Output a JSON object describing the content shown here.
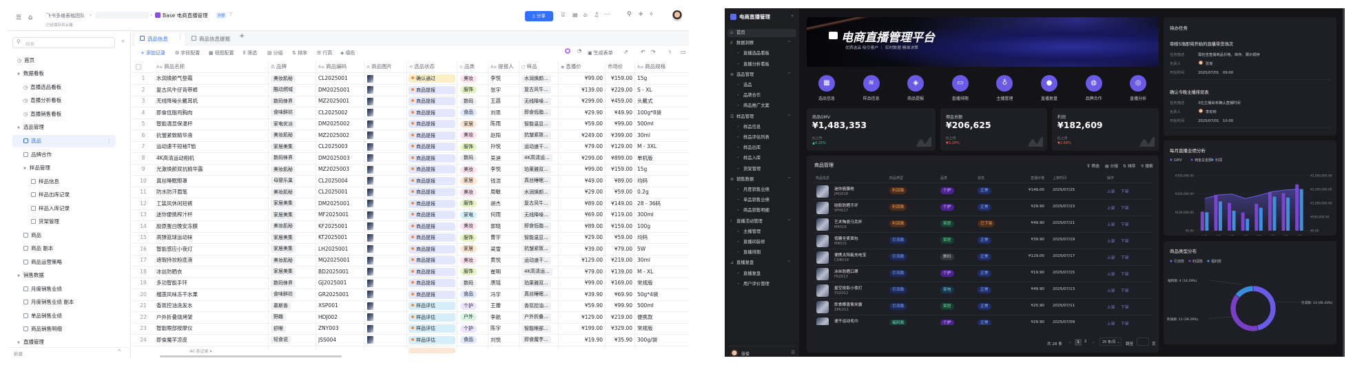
{
  "left_app": {
    "header": {
      "team": "飞书多维表格团队",
      "base_name": "Base 电商直播管理",
      "badge": "外部",
      "saved": "已经保存到云端",
      "share": "分享"
    },
    "sidebar": {
      "search_placeholder": "搜索",
      "new_label": "新建",
      "items": [
        {
          "label": "首页",
          "level": 0,
          "kind": "home"
        },
        {
          "label": "数据看板",
          "level": 0,
          "kind": "group"
        },
        {
          "label": "直播选品看板",
          "level": 1,
          "kind": "dash"
        },
        {
          "label": "直播分析看板",
          "level": 1,
          "kind": "dash"
        },
        {
          "label": "直播销售看板",
          "level": 1,
          "kind": "dash"
        },
        {
          "label": "选品管理",
          "level": 0,
          "kind": "group"
        },
        {
          "label": "选品",
          "level": 1,
          "kind": "table",
          "active": true
        },
        {
          "label": "品牌合作",
          "level": 1,
          "kind": "table"
        },
        {
          "label": "样品管理",
          "level": 1,
          "kind": "group"
        },
        {
          "label": "样品信息",
          "level": 2,
          "kind": "table"
        },
        {
          "label": "样品出库记录",
          "level": 2,
          "kind": "table"
        },
        {
          "label": "样品入库记录",
          "level": 2,
          "kind": "table"
        },
        {
          "label": "货架管理",
          "level": 2,
          "kind": "table"
        },
        {
          "label": "商品",
          "level": 1,
          "kind": "table"
        },
        {
          "label": "商品 副本",
          "level": 1,
          "kind": "table"
        },
        {
          "label": "商品运营策略",
          "level": 1,
          "kind": "table"
        },
        {
          "label": "销售数据",
          "level": 0,
          "kind": "group"
        },
        {
          "label": "月度销售业绩",
          "level": 1,
          "kind": "table"
        },
        {
          "label": "月度销售业绩 副本",
          "level": 1,
          "kind": "table"
        },
        {
          "label": "单品销售业绩",
          "level": 1,
          "kind": "table"
        },
        {
          "label": "商品销售明细",
          "level": 1,
          "kind": "table"
        },
        {
          "label": "直播管理",
          "level": 0,
          "kind": "group"
        }
      ]
    },
    "tabs": [
      {
        "label": "选品信息",
        "active": true
      },
      {
        "label": "商品信息提报"
      }
    ],
    "toolbar": {
      "add": "添加记录",
      "fields": "字段配置",
      "view": "视图配置",
      "filter": "筛选",
      "group": "分组",
      "sort": "排序",
      "row_height": "行高",
      "fill": "填色",
      "form": "生成表单"
    },
    "columns": [
      "商品名称",
      "品牌",
      "商品编码",
      "商品图片",
      "选品状态",
      "品类",
      "提报人",
      "样品",
      "直播价",
      "市场价",
      "商品规格"
    ],
    "rows": [
      [
        "水润焕颜气垫霜",
        "美妆肌秘",
        "CL2025001",
        "确认通过",
        "美妆",
        "李悦",
        "水润焕颜...",
        "¥99.00",
        "¥159.00",
        "15g"
      ],
      [
        "复古风牛仔背带裤",
        "酷动燃域",
        "DM2025001",
        "商品提报",
        "服饰",
        "张宇",
        "复古风牛...",
        "¥139.00",
        "¥229.00",
        "S - XL"
      ],
      [
        "无线降噪头戴耳机",
        "数码锋界",
        "MZ2025001",
        "商品提报",
        "数码",
        "王晨",
        "无线降噪...",
        "¥299.00",
        "¥459.00",
        "头戴式"
      ],
      [
        "即食低脂鸡胸肉",
        "食味鲜坊",
        "CL2025002",
        "商品提报",
        "食品",
        "刘思",
        "即食低脂...",
        "¥29.90",
        "¥49.90",
        "100g*8袋"
      ],
      [
        "智能温显保温杯",
        "家电优派",
        "DM2025002",
        "商品提报",
        "家居",
        "陈雨",
        "智能温显...",
        "¥59.00",
        "¥99.00",
        "500ml"
      ],
      [
        "抗皱紧致精华液",
        "美妆肌秘",
        "MZ2025002",
        "商品提报",
        "美妆",
        "赵阳",
        "抗皱紧致...",
        "¥249.00",
        "¥399.00",
        "30ml"
      ],
      [
        "运动速干短袖T恤",
        "家居美集",
        "CL2025003",
        "商品提报",
        "服饰",
        "孙悦",
        "运动速干...",
        "¥79.00",
        "¥129.00",
        "M - 3XL"
      ],
      [
        "4K高清运动相机",
        "数码锋界",
        "DM2025003",
        "商品提报",
        "数码",
        "吴迪",
        "4K高清运...",
        "¥299.00",
        "¥899.00",
        "单机版"
      ],
      [
        "光澈焕颜双抗精华露",
        "美妆肌秘",
        "MZ2025003",
        "商品提报",
        "美妆",
        "李悦",
        "珀莱雅双...",
        "¥99.00",
        "¥159.00",
        "15g"
      ],
      [
        "真丝睡眠眼罩",
        "母婴乐巢",
        "CL2025004",
        "商品提报",
        "家居",
        "钱浩",
        "真丝睡眠...",
        "¥49.00",
        "¥89.00",
        "均码"
      ],
      [
        "防水防汗眉笔",
        "美妆肌秘",
        "CL2025001",
        "商品提报",
        "美妆",
        "周敏",
        "水润焕颜...",
        "¥29.00",
        "¥59.00",
        "0.2g"
      ],
      [
        "工装风休闲短裤",
        "家居美集",
        "DM2025001",
        "商品提报",
        "服饰",
        "胡杰",
        "复古风牛...",
        "¥89.00",
        "¥149.00",
        "28 - 36码"
      ],
      [
        "迷你便携榨汁杯",
        "家居美集",
        "MF2025001",
        "商品提报",
        "家电",
        "何雨",
        "无线降噪...",
        "¥69.00",
        "¥119.00",
        "300ml"
      ],
      [
        "胶原蛋白晚安冻膜",
        "美妆肌秘",
        "KF2025001",
        "商品提报",
        "美妆",
        "郭晓",
        "即食低脂...",
        "¥89.00",
        "¥159.00",
        "100g"
      ],
      [
        "高弹篮球运动袜",
        "家居美集",
        "KT2025001",
        "商品提报",
        "服饰",
        "曹宇",
        "智能温显...",
        "¥29.00",
        "¥59.00",
        "均码"
      ],
      [
        "智能感应小夜灯",
        "家居美集",
        "LH2025001",
        "商品提报",
        "家居",
        "梁雪",
        "抗皱紧致...",
        "¥39.00",
        "¥79.00",
        "5W"
      ],
      [
        "遮瑕持妆粉底液",
        "美妆肌秘",
        "MQ2025001",
        "商品提报",
        "美妆",
        "黄悦",
        "运动速干...",
        "¥129.00",
        "¥219.00",
        "30ml"
      ],
      [
        "冰丝防晒衣",
        "家居美集",
        "BD2025001",
        "商品提报",
        "服饰",
        "崔明",
        "4K高清运...",
        "¥79.00",
        "¥139.00",
        "M - XL"
      ],
      [
        "多功智能手环",
        "数码锋界",
        "GJ2025001",
        "商品提报",
        "数码",
        "唐瑶",
        "珀莱雅双...",
        "¥99.00",
        "¥169.00",
        "常规版"
      ],
      [
        "榴莲风味冻干水果",
        "食味鲜坊",
        "GR2025001",
        "商品提报",
        "食品",
        "冯宇",
        "真丝睡眠...",
        "¥39.90",
        "¥69.90",
        "50g*4袋"
      ],
      [
        "香氛控油洗发水",
        "慕斯香",
        "XSP001",
        "样品评估",
        "个护",
        "王蕾",
        "香氛控油...",
        "¥59.90",
        "¥99.90",
        "500ml"
      ],
      [
        "户外折叠烧烤架",
        "野趣",
        "HDJ002",
        "样品评估",
        "户外",
        "李航",
        "户外折叠...",
        "¥129.00",
        "¥219.00",
        "便携款"
      ],
      [
        "智能眼部按摩仪",
        "舒眼",
        "ZNY003",
        "样品评估",
        "个护",
        "陈宇",
        "智能眼部...",
        "¥199.00",
        "¥329.00",
        "常规版"
      ],
      [
        "即食魔芋凉皮",
        "轻食说",
        "JSS004",
        "样品评估",
        "食品",
        "刘悦",
        "即食魔芋...",
        "¥19.90",
        "¥35.90",
        "300g/袋"
      ]
    ],
    "footer": {
      "count": "40 条记录"
    },
    "status_colors": {
      "确认通过": "#fbefc8",
      "商品提报": "#e3e7fd",
      "样品评估": "#d5eefa"
    },
    "category_colors": {
      "美妆": "#fde1ee",
      "服饰": "#e5f5c2",
      "数码": "#eceef1",
      "食品": "#e0e8fd",
      "家居": "#fde5d2",
      "家电": "#d3f0fb",
      "个护": "#ece4fd",
      "户外": "#d9f6e1"
    }
  },
  "right_app": {
    "sidebar": {
      "title": "电商直播管理",
      "user": "张俊",
      "items": [
        {
          "label": "首页",
          "level": 0,
          "active": true
        },
        {
          "label": "数据洞察",
          "level": 0,
          "group": true
        },
        {
          "label": "直播选品看板",
          "level": 1
        },
        {
          "label": "直播分析看板",
          "level": 1
        },
        {
          "label": "选品管理",
          "level": 0,
          "group": true
        },
        {
          "label": "选品",
          "level": 1
        },
        {
          "label": "品牌合作",
          "level": 1
        },
        {
          "label": "商品推广文案",
          "level": 1
        },
        {
          "label": "样品管理",
          "level": 0,
          "group": true
        },
        {
          "label": "样品信息",
          "level": 1
        },
        {
          "label": "样品评估列表",
          "level": 1
        },
        {
          "label": "样品出库",
          "level": 1
        },
        {
          "label": "样品入库",
          "level": 1
        },
        {
          "label": "货架管理",
          "level": 1
        },
        {
          "label": "销售数据",
          "level": 0,
          "group": true
        },
        {
          "label": "月度销售业绩",
          "level": 1
        },
        {
          "label": "单品销售业绩",
          "level": 1
        },
        {
          "label": "商品销售明细",
          "level": 1
        },
        {
          "label": "直播活动管理",
          "level": 0,
          "group": true
        },
        {
          "label": "主播管理",
          "level": 1
        },
        {
          "label": "直播间装修",
          "level": 1
        },
        {
          "label": "直播排期",
          "level": 1
        },
        {
          "label": "直播复盘",
          "level": 0,
          "group": true
        },
        {
          "label": "直播复盘",
          "level": 1
        },
        {
          "label": "用户评价管理",
          "level": 1
        }
      ]
    },
    "banner": {
      "title": "电商直播管理平台",
      "subtitle": "优质选品 吸引客户 ｜ 实时数据 精准决策"
    },
    "shortcuts": [
      {
        "label": "选品信息",
        "icon": "grid-icon"
      },
      {
        "label": "样品信息",
        "icon": "layers-icon"
      },
      {
        "label": "商品提报",
        "icon": "box-icon"
      },
      {
        "label": "直播排期",
        "icon": "calendar-icon"
      },
      {
        "label": "主播管理",
        "icon": "microphone-icon"
      },
      {
        "label": "直播复盘",
        "icon": "bulb-icon"
      },
      {
        "label": "品牌合作",
        "icon": "globe-icon"
      },
      {
        "label": "直播分析",
        "icon": "gauge-icon"
      }
    ],
    "stats": [
      {
        "label": "商品GMV",
        "value": "¥1,483,353",
        "compare": "比上月",
        "change": "▲4.15%",
        "dir": "up"
      },
      {
        "label": "佣金总额",
        "value": "¥206,625",
        "compare": "比上月",
        "change": "▼3.28%",
        "dir": "down"
      },
      {
        "label": "利润",
        "value": "¥182,609",
        "compare": "比上月",
        "change": "▼2.68%",
        "dir": "down"
      }
    ],
    "product_table": {
      "title": "商品管理",
      "tools": [
        "筛选",
        "分组",
        "排序",
        "搜索"
      ],
      "columns": [
        "商品信息",
        "商品类型",
        "品类",
        "状态",
        "直播价格",
        "上架时间",
        "操作"
      ],
      "actions": [
        "上架",
        "下架"
      ],
      "rows": [
        {
          "name": "迷你筋膜枪",
          "code": "JMQ018",
          "type": "利润款",
          "cat": "个护",
          "status": "正常",
          "price": "¥149.00",
          "date": "2025/07/25"
        },
        {
          "name": "硅胶防晒手环",
          "code": "SFH017",
          "type": "利润款",
          "cat": "个护",
          "status": "正常",
          "price": "¥29.90",
          "date": "2025/07/23"
        },
        {
          "name": "艺术陶瓷马克杯",
          "code": "MK016",
          "type": "利润款",
          "cat": "家居",
          "status": "已下架",
          "price": "¥49.90",
          "date": "2025/07/21"
        },
        {
          "name": "低糖全麦面包",
          "code": "MB015",
          "type": "引流款",
          "cat": "家居",
          "status": "正常",
          "price": "¥39.90",
          "date": "2025/07/19"
        },
        {
          "name": "便携太阳能充电宝",
          "code": "CDB014",
          "type": "引流款",
          "cat": "数码",
          "status": "正常",
          "price": "¥129.00",
          "date": "2025/07/17"
        },
        {
          "name": "冰丝防晒口罩",
          "code": "FKZ013",
          "type": "引流款",
          "cat": "个护",
          "status": "正常",
          "price": "¥19.90",
          "date": "2025/07/15"
        },
        {
          "name": "星空投影小夜灯",
          "code": "YSD012",
          "type": "引流款",
          "cat": "家电",
          "status": "正常",
          "price": "¥49.90",
          "date": "2025/07/13"
        },
        {
          "name": "即食椰香紫米露",
          "code": "ZML011",
          "type": "引流款",
          "cat": "家居",
          "status": "正常",
          "price": "¥25.90",
          "date": "2025/07/11"
        },
        {
          "name": "速干运动毛巾",
          "code": "",
          "type": "福利款",
          "cat": "个护",
          "status": "正常",
          "price": "¥29.90",
          "date": "2025/07/09"
        }
      ],
      "pagination": {
        "total": "共 28 条",
        "pages": [
          "1",
          "2"
        ],
        "current": "1",
        "page_size": "20 条/页",
        "jump": "跳至",
        "page_unit": "页"
      }
    },
    "todo": {
      "title": "待办任务",
      "fields": [
        "任务描述",
        "负责人",
        "开始时间"
      ],
      "tasks": [
        {
          "title": "审核5场即将开始的直播带货场次",
          "desc": "需检查直播商品价格、库存、展示顺序",
          "owner": "张俊",
          "start": "2025/07/01　09:00"
        },
        {
          "title": "确认今晚主播排班表",
          "desc": "3位主播尚未确认直播时间",
          "owner": "李宏彬",
          "start": "2025/07/01　10:00"
        }
      ]
    }
  },
  "chart_data": [
    {
      "type": "bar",
      "title": "每月直播业绩分析",
      "categories": [
        "1月",
        "2月",
        "3月",
        "4月",
        "5月",
        "6月",
        "7月",
        "8月"
      ],
      "series": [
        {
          "name": "GMV",
          "type": "area-line",
          "axis": "right",
          "color": "#6b5cf0",
          "values": [
            1170000,
            1300000,
            1330000,
            1170000,
            1280000,
            1420000,
            1480000,
            1510000
          ]
        },
        {
          "name": "佣金总金额",
          "type": "bar",
          "axis": "left",
          "color": "#7b45d0",
          "values": [
            104000,
            195000,
            152000,
            99000,
            147000,
            212000,
            205000,
            252000
          ]
        },
        {
          "name": "利润",
          "type": "bar",
          "axis": "left",
          "color": "#3d8fe0",
          "values": [
            101000,
            160000,
            109000,
            65000,
            125000,
            186000,
            181000,
            227000
          ]
        }
      ],
      "left_axis": {
        "ticks": [
          "¥0.00",
          "¥100,000.00",
          "¥200,000.00",
          "¥300,000.00"
        ],
        "range": [
          0,
          300000
        ]
      },
      "right_axis": {
        "ticks": [
          "¥0.00",
          "¥500,000.00",
          "¥1,000,000.00",
          "¥1,500,000.00",
          "¥2,000,000.00"
        ],
        "range": [
          0,
          2000000
        ]
      },
      "legend": "top-left",
      "grid": true
    },
    {
      "type": "pie",
      "title": "商品类型分布",
      "donut": true,
      "slices": [
        {
          "name": "引流款",
          "value": 13,
          "percent": "46.43%",
          "label": "引流款: 13 (46.43%)",
          "color": "#6b5ce7"
        },
        {
          "name": "利润款",
          "value": 11,
          "percent": "39.29%",
          "label": "利润款: 11 (39.29%)",
          "color": "#7a3fc8"
        },
        {
          "name": "福利款",
          "value": 4,
          "percent": "14.29%",
          "label": "福利款: 4 (14.29%)",
          "color": "#3b8ddb"
        }
      ],
      "legend": "top-left"
    }
  ]
}
